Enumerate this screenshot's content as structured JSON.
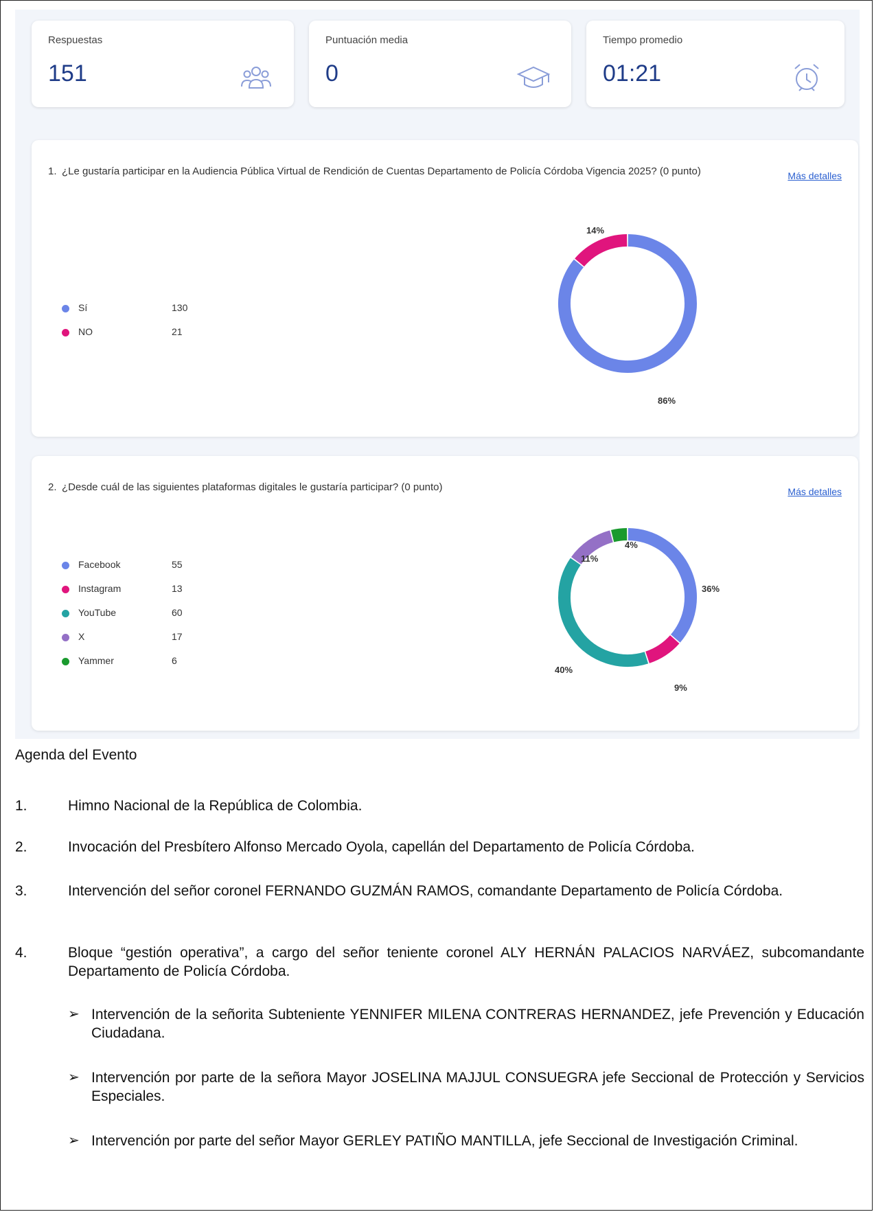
{
  "stats": [
    {
      "label": "Respuestas",
      "value": "151",
      "icon": "people-icon"
    },
    {
      "label": "Puntuación media",
      "value": "0",
      "icon": "graduation-cap-icon"
    },
    {
      "label": "Tiempo promedio",
      "value": "01:21",
      "icon": "alarm-clock-icon"
    }
  ],
  "questions": [
    {
      "number": "1.",
      "text": "¿Le gustaría participar en la Audiencia Pública Virtual de Rendición de Cuentas Departamento de Policía Córdoba Vigencia 2025? (0 punto)",
      "link": "Más detalles"
    },
    {
      "number": "2.",
      "text": "¿Desde cuál de las siguientes plataformas digitales le gustaría participar? (0 punto)",
      "link": "Más detalles"
    }
  ],
  "chart_data": [
    {
      "type": "pie",
      "categories": [
        "Sí",
        "NO"
      ],
      "values": [
        130,
        21
      ],
      "percent_labels": [
        "86%",
        "14%"
      ],
      "colors": [
        "#6b85e8",
        "#e0157d"
      ]
    },
    {
      "type": "pie",
      "categories": [
        "Facebook",
        "Instagram",
        "YouTube",
        "X",
        "Yammer"
      ],
      "values": [
        55,
        13,
        60,
        17,
        6
      ],
      "percent_labels": [
        "36%",
        "9%",
        "40%",
        "11%",
        "4%"
      ],
      "colors": [
        "#6b85e8",
        "#e0157d",
        "#24a3a3",
        "#9470c6",
        "#1a9a2e"
      ]
    }
  ],
  "agenda": {
    "title": "Agenda del Evento",
    "items": [
      {
        "num": "1.",
        "text": "Himno Nacional de la República de Colombia."
      },
      {
        "num": "2.",
        "text": "Invocación del Presbítero Alfonso Mercado Oyola, capellán del Departamento de Policía Córdoba."
      },
      {
        "num": "3.",
        "text": "Intervención del señor coronel FERNANDO GUZMÁN RAMOS, comandante Departamento de Policía Córdoba."
      },
      {
        "num": "4.",
        "text": "Bloque “gestión operativa”, a cargo del señor teniente coronel ALY HERNÁN PALACIOS NARVÁEZ, subcomandante Departamento de Policía Córdoba."
      }
    ],
    "subitems": [
      {
        "text": "Intervención de la señorita Subteniente YENNIFER MILENA CONTRERAS HERNANDEZ, jefe Prevención y Educación Ciudadana."
      },
      {
        "text": "Intervención por parte de la señora Mayor JOSELINA MAJJUL CONSUEGRA jefe Seccional de Protección y Servicios Especiales."
      },
      {
        "text": "Intervención por parte del señor Mayor GERLEY PATIÑO MANTILLA, jefe Seccional de Investigación Criminal."
      }
    ]
  }
}
